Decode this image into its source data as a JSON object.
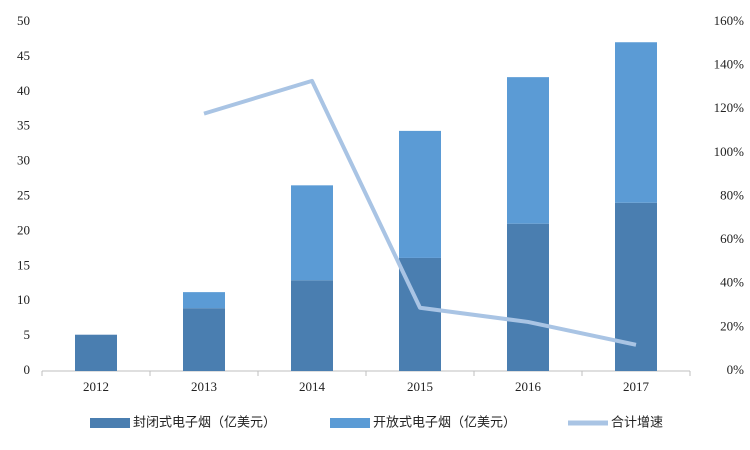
{
  "chart_data": {
    "type": "bar",
    "stacked": true,
    "categories": [
      "2012",
      "2013",
      "2014",
      "2015",
      "2016",
      "2017"
    ],
    "series": [
      {
        "name": "封闭式电子烟（亿美元）",
        "color": "#4a7eb0",
        "values": [
          5.2,
          9.0,
          13.0,
          16.2,
          21.1,
          24.1
        ]
      },
      {
        "name": "开放式电子烟（亿美元）",
        "color": "#5b9bd5",
        "values": [
          0,
          2.3,
          13.6,
          18.2,
          21.0,
          23.0
        ]
      },
      {
        "name": "合计增速",
        "color": "#a9c4e4",
        "type": "line",
        "axis": "y2",
        "values": [
          null,
          118,
          133,
          29,
          22.5,
          12
        ]
      }
    ],
    "ylim": [
      0,
      50
    ],
    "yticks": [
      0,
      5,
      10,
      15,
      20,
      25,
      30,
      35,
      40,
      45,
      50
    ],
    "y2lim": [
      0,
      160
    ],
    "y2ticks": [
      {
        "value": 0,
        "label": "0%"
      },
      {
        "value": 20,
        "label": "20%"
      },
      {
        "value": 40,
        "label": "40%"
      },
      {
        "value": 60,
        "label": "60%"
      },
      {
        "value": 80,
        "label": "80%"
      },
      {
        "value": 100,
        "label": "100%"
      },
      {
        "value": 120,
        "label": "120%"
      },
      {
        "value": 140,
        "label": "140%"
      },
      {
        "value": 160,
        "label": "160%"
      }
    ],
    "grid": false
  }
}
